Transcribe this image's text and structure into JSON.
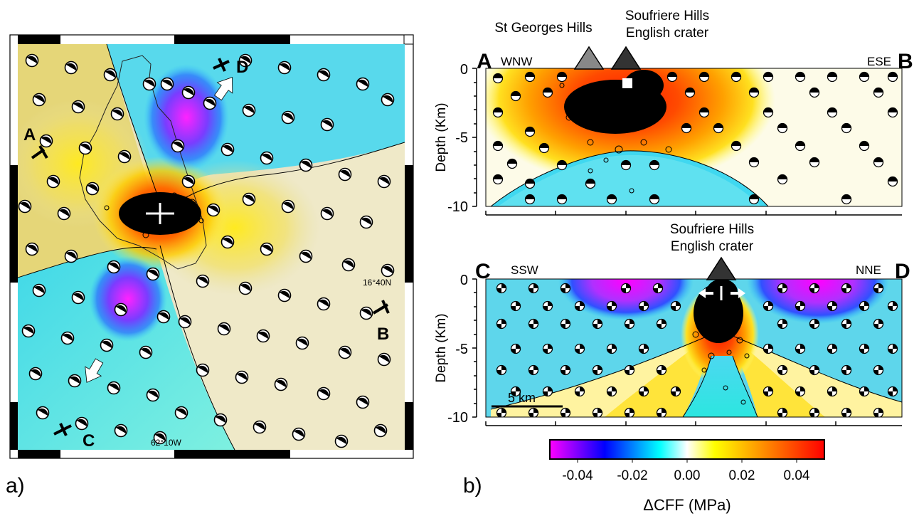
{
  "panel_a": {
    "label": "a)",
    "profile_labels": {
      "A": "A",
      "B": "B",
      "C": "C",
      "D": "D"
    },
    "lat_label": "16°40N",
    "lon_label": "62°10W"
  },
  "panel_b": {
    "label": "b)",
    "top_section": {
      "start_letter": "A",
      "start_dir": "WNW",
      "end_letter": "B",
      "end_dir": "ESE",
      "volcano_left": "St Georges Hills",
      "volcano_right_line1": "Soufriere Hills",
      "volcano_right_line2": "English crater",
      "ylabel": "Depth (Km)",
      "yticks": [
        "0",
        "-5",
        "-10"
      ]
    },
    "bottom_section": {
      "start_letter": "C",
      "start_dir": "SSW",
      "end_letter": "D",
      "end_dir": "NNE",
      "volcano_line1": "Soufriere Hills",
      "volcano_line2": "English crater",
      "ylabel": "Depth (Km)",
      "yticks": [
        "0",
        "-5",
        "-10"
      ],
      "scale_bar": "5 km"
    }
  },
  "colorbar": {
    "ticks": [
      "-0.04",
      "-0.02",
      "0.00",
      "0.02",
      "0.04"
    ],
    "label": "ΔCFF (MPa)",
    "colors": [
      "#ff00ff",
      "#0000ff",
      "#00ffff",
      "#ffffff",
      "#ffff00",
      "#ff0000"
    ]
  }
}
